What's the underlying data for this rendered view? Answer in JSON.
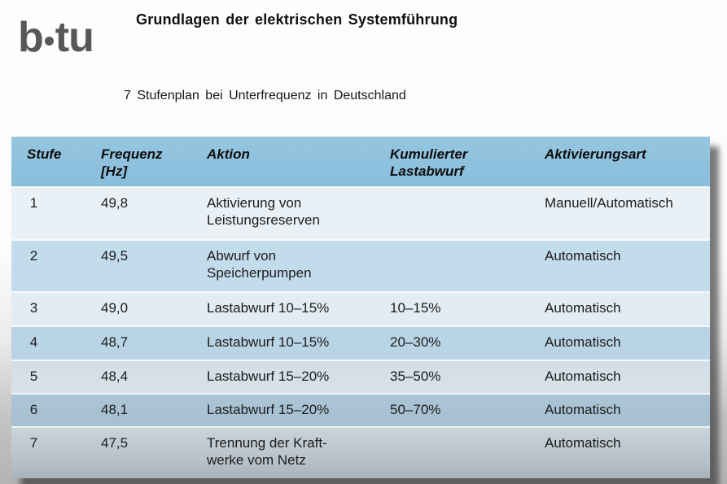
{
  "header": {
    "logo_text_left": "b",
    "logo_text_right": "tu",
    "title": "Grundlagen der elektrischen Systemführung"
  },
  "subtitle": "7 Stufenplan bei Unterfrequenz in Deutschland",
  "table": {
    "columns": [
      "Stufe",
      "Frequenz\n[Hz]",
      "Aktion",
      "Kumulierter\nLastabwurf",
      "Aktivierungsart"
    ],
    "rows": [
      [
        "1",
        "49,8",
        "Aktivierung von\nLeistungsreserven",
        "",
        "Manuell/Automatisch"
      ],
      [
        "2",
        "49,5",
        "Abwurf von\nSpeicherpumpen",
        "",
        "Automatisch"
      ],
      [
        "3",
        "49,0",
        "Lastabwurf 10–15%",
        "10–15%",
        "Automatisch"
      ],
      [
        "4",
        "48,7",
        "Lastabwurf 10–15%",
        "20–30%",
        "Automatisch"
      ],
      [
        "5",
        "48,4",
        "Lastabwurf 15–20%",
        "35–50%",
        "Automatisch"
      ],
      [
        "6",
        "48,1",
        "Lastabwurf 15–20%",
        "50–70%",
        "Automatisch"
      ],
      [
        "7",
        "47,5",
        "Trennung der Kraft-\nwerke vom Netz",
        "",
        "Automatisch"
      ]
    ]
  },
  "colors": {
    "header_row_blue": "#8fc1dc",
    "row_light_blue": "#e9f1f7",
    "row_medium_blue": "#c3dcec",
    "logo_gray": "#58585a",
    "text": "#1c1c1c",
    "table_shadow": "#2a2a2a",
    "background_bottom_gray": "#b3b3b3"
  }
}
